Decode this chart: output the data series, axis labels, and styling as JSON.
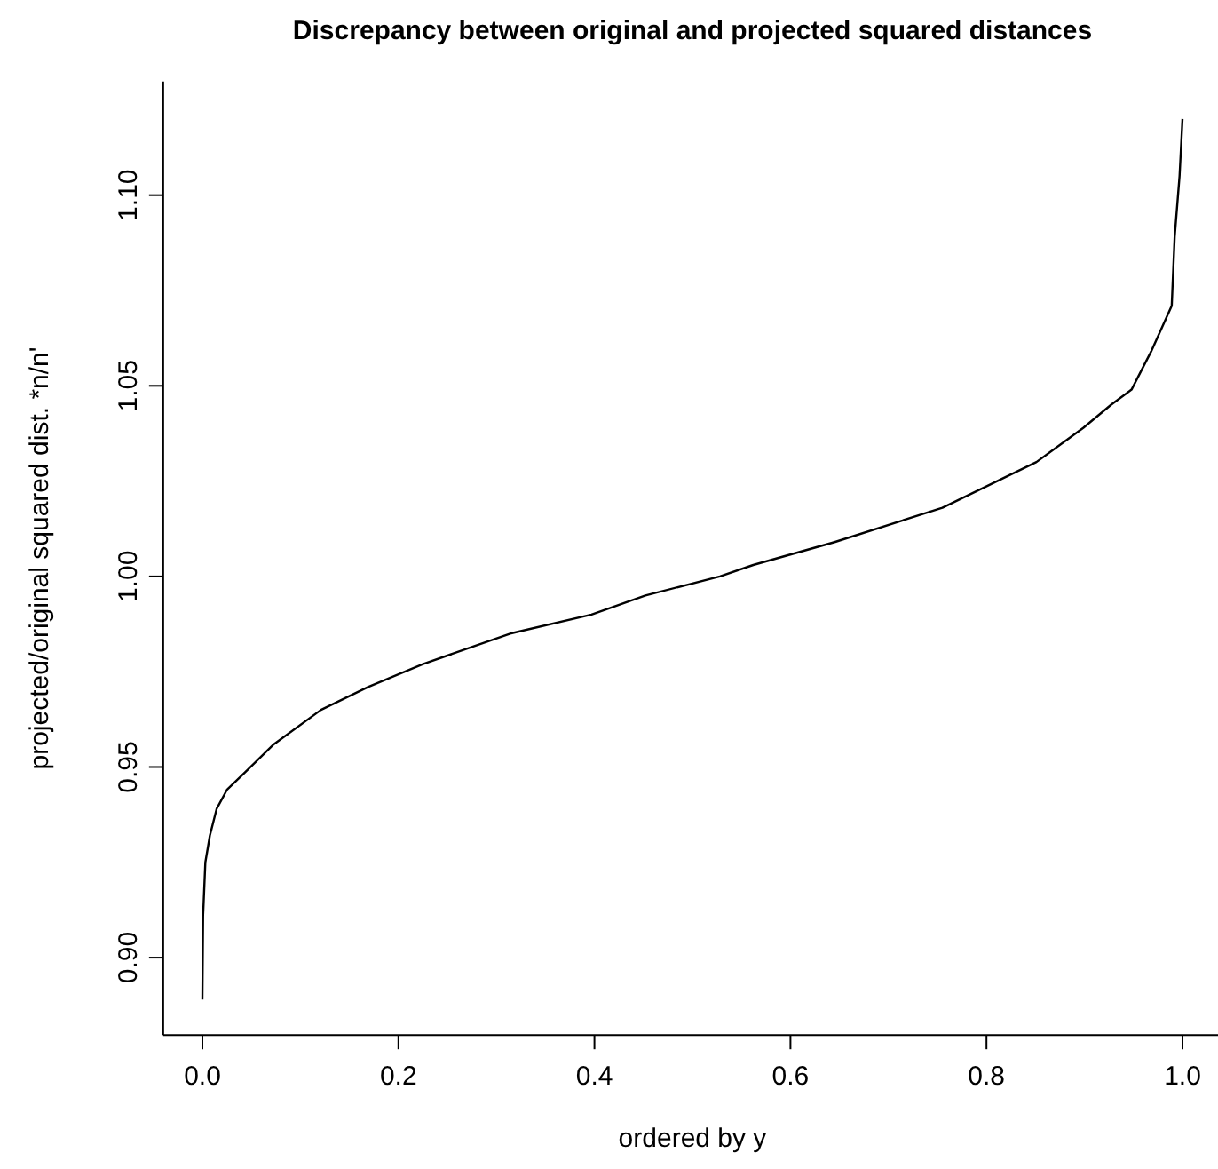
{
  "chart_data": {
    "type": "line",
    "title": "Discrepancy between original and projected squared distances",
    "xlabel": "ordered by y",
    "ylabel": "projected/original squared dist. *n/n'",
    "x": [
      0,
      0.0007,
      0.003,
      0.0076,
      0.0145,
      0.025,
      0.045,
      0.073,
      0.121,
      0.169,
      0.225,
      0.314,
      0.397,
      0.452,
      0.528,
      0.562,
      0.645,
      0.755,
      0.851,
      0.899,
      0.927,
      0.948,
      0.968,
      0.989,
      0.992,
      0.997,
      1.0
    ],
    "series": [
      {
        "color": "#000000",
        "values": [
          0.889,
          0.911,
          0.925,
          0.932,
          0.939,
          0.944,
          0.949,
          0.956,
          0.965,
          0.971,
          0.977,
          0.985,
          0.99,
          0.995,
          1.0,
          1.003,
          1.009,
          1.018,
          1.03,
          1.039,
          1.045,
          1.049,
          1.059,
          1.071,
          1.089,
          1.105,
          1.12
        ]
      }
    ],
    "xlim": [
      -0.04,
      1.04
    ],
    "ylim": [
      0.8797,
      1.1298
    ],
    "xticks": [
      {
        "value": 0,
        "label": "0.0"
      },
      0.2,
      0.4,
      0.6,
      0.8,
      {
        "value": 1,
        "label": "1.0"
      }
    ],
    "yticks": [
      {
        "value": 0.9,
        "label": "0.90"
      },
      0.95,
      {
        "value": 1,
        "label": "1.00"
      },
      1.05,
      {
        "value": 1.1,
        "label": "1.10"
      }
    ],
    "grid": false,
    "marker": "none",
    "line_style": "solid"
  }
}
